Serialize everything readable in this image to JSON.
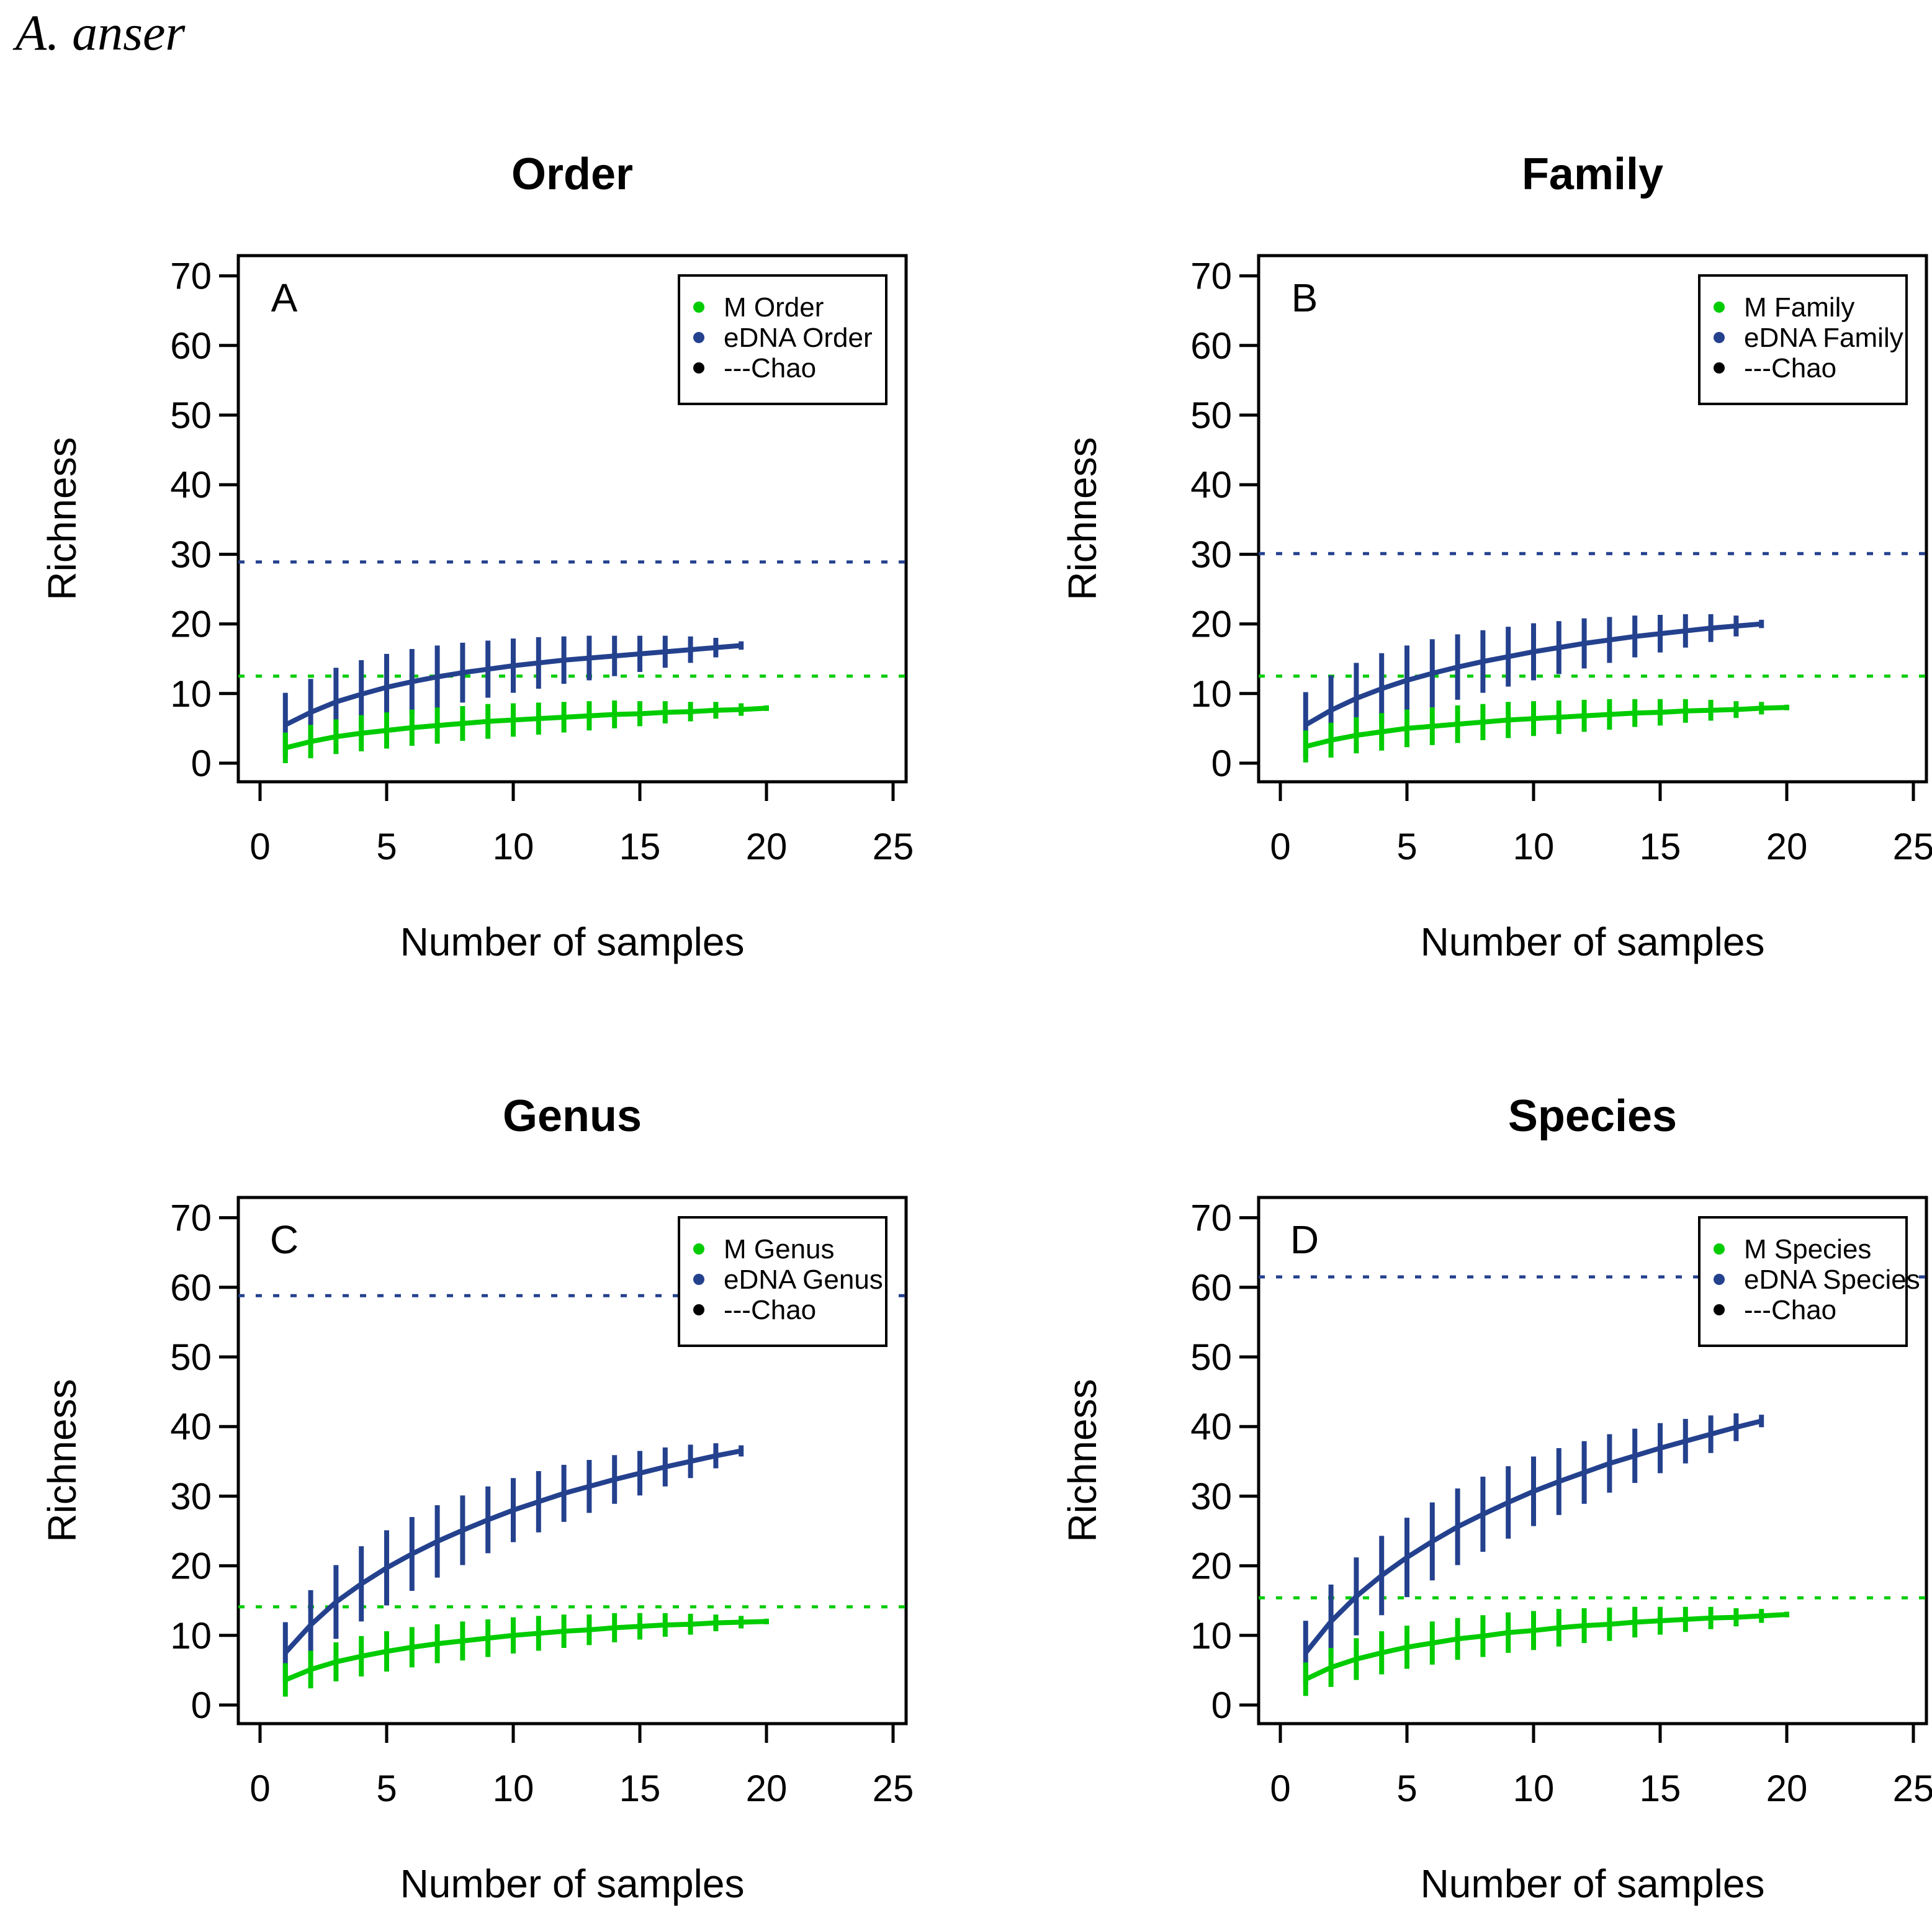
{
  "page": {
    "species_title": "A. anser",
    "background": "#ffffff"
  },
  "colors": {
    "m_green": "#00CC00",
    "edna_blue": "#24418E",
    "black": "#000000",
    "axis": "#000000"
  },
  "chart_data": [
    {
      "type": "line",
      "panel_letter": "A",
      "title": "Order",
      "xlabel": "Number of samples",
      "ylabel": "Richness",
      "xlim": [
        0,
        25
      ],
      "ylim": [
        0,
        70
      ],
      "xticks": [
        0,
        5,
        10,
        15,
        20,
        25
      ],
      "yticks": [
        0,
        10,
        20,
        30,
        40,
        50,
        60,
        70
      ],
      "legend_position": "top-right",
      "legend": [
        {
          "label": "M Order",
          "color": "m_green"
        },
        {
          "label": "eDNA Order",
          "color": "edna_blue"
        },
        {
          "label": "---Chao",
          "color": "black"
        }
      ],
      "chao_dashed_lines": [
        {
          "series": "eDNA Order",
          "value": 28.9,
          "color": "edna_blue"
        },
        {
          "series": "M Order",
          "value": 12.5,
          "color": "m_green"
        }
      ],
      "series": [
        {
          "name": "eDNA Order",
          "color": "edna_blue",
          "x": [
            1,
            2,
            3,
            4,
            5,
            6,
            7,
            8,
            9,
            10,
            11,
            12,
            13,
            14,
            15,
            16,
            17,
            18,
            19
          ],
          "y": [
            5.5,
            7.3,
            8.8,
            9.9,
            10.9,
            11.7,
            12.4,
            13.0,
            13.5,
            14.0,
            14.4,
            14.8,
            15.1,
            15.4,
            15.7,
            16.0,
            16.3,
            16.6,
            16.9
          ],
          "err": [
            4.6,
            4.8,
            4.9,
            4.9,
            4.8,
            4.7,
            4.5,
            4.3,
            4.1,
            3.9,
            3.7,
            3.4,
            3.2,
            2.9,
            2.6,
            2.3,
            1.9,
            1.4,
            0.6
          ]
        },
        {
          "name": "M Order",
          "color": "m_green",
          "x": [
            1,
            2,
            3,
            4,
            5,
            6,
            7,
            8,
            9,
            10,
            11,
            12,
            13,
            14,
            15,
            16,
            17,
            18,
            19,
            20
          ],
          "y": [
            2.2,
            3.1,
            3.8,
            4.3,
            4.7,
            5.1,
            5.4,
            5.7,
            6.0,
            6.2,
            6.4,
            6.6,
            6.8,
            7.0,
            7.1,
            7.3,
            7.4,
            7.6,
            7.7,
            7.9
          ],
          "err": [
            2.2,
            2.4,
            2.5,
            2.6,
            2.6,
            2.6,
            2.6,
            2.5,
            2.5,
            2.4,
            2.3,
            2.2,
            2.1,
            2.0,
            1.8,
            1.6,
            1.4,
            1.2,
            0.9,
            0.4
          ]
        }
      ]
    },
    {
      "type": "line",
      "panel_letter": "B",
      "title": "Family",
      "xlabel": "Number of samples",
      "ylabel": "Richness",
      "xlim": [
        0,
        25
      ],
      "ylim": [
        0,
        70
      ],
      "xticks": [
        0,
        5,
        10,
        15,
        20,
        25
      ],
      "yticks": [
        0,
        10,
        20,
        30,
        40,
        50,
        60,
        70
      ],
      "legend_position": "top-right",
      "legend": [
        {
          "label": "M Family",
          "color": "m_green"
        },
        {
          "label": "eDNA Family",
          "color": "edna_blue"
        },
        {
          "label": "---Chao",
          "color": "black"
        }
      ],
      "chao_dashed_lines": [
        {
          "series": "eDNA Family",
          "value": 30.1,
          "color": "edna_blue"
        },
        {
          "series": "M Family",
          "value": 12.5,
          "color": "m_green"
        }
      ],
      "series": [
        {
          "name": "eDNA Family",
          "color": "edna_blue",
          "x": [
            1,
            2,
            3,
            4,
            5,
            6,
            7,
            8,
            9,
            10,
            11,
            12,
            13,
            14,
            15,
            16,
            17,
            18,
            19
          ],
          "y": [
            5.5,
            7.6,
            9.3,
            10.7,
            11.9,
            12.9,
            13.8,
            14.6,
            15.3,
            16.0,
            16.6,
            17.2,
            17.7,
            18.2,
            18.6,
            19.0,
            19.4,
            19.7,
            20.0
          ],
          "err": [
            4.7,
            5.0,
            5.1,
            5.1,
            5.0,
            4.9,
            4.7,
            4.5,
            4.3,
            4.1,
            3.8,
            3.6,
            3.3,
            3.0,
            2.7,
            2.4,
            2.0,
            1.5,
            0.6
          ]
        },
        {
          "name": "M Family",
          "color": "m_green",
          "x": [
            1,
            2,
            3,
            4,
            5,
            6,
            7,
            8,
            9,
            10,
            11,
            12,
            13,
            14,
            15,
            16,
            17,
            18,
            19,
            20
          ],
          "y": [
            2.4,
            3.3,
            4.0,
            4.5,
            5.0,
            5.3,
            5.6,
            5.9,
            6.2,
            6.4,
            6.6,
            6.8,
            7.0,
            7.2,
            7.3,
            7.5,
            7.6,
            7.7,
            7.9,
            8.0
          ],
          "err": [
            2.3,
            2.5,
            2.6,
            2.7,
            2.7,
            2.7,
            2.7,
            2.6,
            2.6,
            2.5,
            2.4,
            2.3,
            2.2,
            2.0,
            1.9,
            1.7,
            1.5,
            1.2,
            0.9,
            0.4
          ]
        }
      ]
    },
    {
      "type": "line",
      "panel_letter": "C",
      "title": "Genus",
      "xlabel": "Number of samples",
      "ylabel": "Richness",
      "xlim": [
        0,
        25
      ],
      "ylim": [
        0,
        70
      ],
      "xticks": [
        0,
        5,
        10,
        15,
        20,
        25
      ],
      "yticks": [
        0,
        10,
        20,
        30,
        40,
        50,
        60,
        70
      ],
      "legend_position": "top-right",
      "legend": [
        {
          "label": "M Genus",
          "color": "m_green"
        },
        {
          "label": "eDNA Genus",
          "color": "edna_blue"
        },
        {
          "label": "---Chao",
          "color": "black"
        }
      ],
      "chao_dashed_lines": [
        {
          "series": "eDNA Genus",
          "value": 58.8,
          "color": "edna_blue"
        },
        {
          "series": "M Genus",
          "value": 14.1,
          "color": "m_green"
        }
      ],
      "series": [
        {
          "name": "eDNA Genus",
          "color": "edna_blue",
          "x": [
            1,
            2,
            3,
            4,
            5,
            6,
            7,
            8,
            9,
            10,
            11,
            12,
            13,
            14,
            15,
            16,
            17,
            18,
            19
          ],
          "y": [
            7.5,
            11.5,
            14.8,
            17.4,
            19.7,
            21.7,
            23.5,
            25.1,
            26.6,
            28.0,
            29.2,
            30.4,
            31.4,
            32.4,
            33.3,
            34.2,
            35.0,
            35.8,
            36.5
          ],
          "err": [
            4.4,
            5.0,
            5.3,
            5.4,
            5.4,
            5.3,
            5.2,
            5.0,
            4.8,
            4.6,
            4.4,
            4.1,
            3.8,
            3.5,
            3.2,
            2.8,
            2.4,
            1.8,
            0.8
          ]
        },
        {
          "name": "M Genus",
          "color": "m_green",
          "x": [
            1,
            2,
            3,
            4,
            5,
            6,
            7,
            8,
            9,
            10,
            11,
            12,
            13,
            14,
            15,
            16,
            17,
            18,
            19,
            20
          ],
          "y": [
            3.6,
            5.1,
            6.2,
            7.0,
            7.7,
            8.3,
            8.8,
            9.2,
            9.6,
            10.0,
            10.3,
            10.6,
            10.8,
            11.1,
            11.3,
            11.5,
            11.6,
            11.8,
            11.9,
            12.0
          ],
          "err": [
            2.4,
            2.7,
            2.8,
            2.9,
            2.9,
            2.9,
            2.8,
            2.8,
            2.7,
            2.6,
            2.5,
            2.4,
            2.2,
            2.1,
            1.9,
            1.7,
            1.5,
            1.2,
            0.9,
            0.4
          ]
        }
      ]
    },
    {
      "type": "line",
      "panel_letter": "D",
      "title": "Species",
      "xlabel": "Number of samples",
      "ylabel": "Richness",
      "xlim": [
        0,
        25
      ],
      "ylim": [
        0,
        70
      ],
      "xticks": [
        0,
        5,
        10,
        15,
        20,
        25
      ],
      "yticks": [
        0,
        10,
        20,
        30,
        40,
        50,
        60,
        70
      ],
      "legend_position": "top-right",
      "legend": [
        {
          "label": "M Species",
          "color": "m_green"
        },
        {
          "label": "eDNA Species",
          "color": "edna_blue"
        },
        {
          "label": "---Chao",
          "color": "black"
        }
      ],
      "chao_dashed_lines": [
        {
          "series": "eDNA Species",
          "value": 61.5,
          "color": "edna_blue"
        },
        {
          "series": "M Species",
          "value": 15.4,
          "color": "m_green"
        }
      ],
      "series": [
        {
          "name": "eDNA Species",
          "color": "edna_blue",
          "x": [
            1,
            2,
            3,
            4,
            5,
            6,
            7,
            8,
            9,
            10,
            11,
            12,
            13,
            14,
            15,
            16,
            17,
            18,
            19
          ],
          "y": [
            7.5,
            12.0,
            15.6,
            18.6,
            21.2,
            23.5,
            25.6,
            27.4,
            29.1,
            30.7,
            32.1,
            33.4,
            34.7,
            35.8,
            36.9,
            37.9,
            38.9,
            39.9,
            40.8
          ],
          "err": [
            4.6,
            5.3,
            5.6,
            5.7,
            5.7,
            5.6,
            5.5,
            5.4,
            5.2,
            5.0,
            4.8,
            4.5,
            4.2,
            3.9,
            3.6,
            3.2,
            2.7,
            2.0,
            0.9
          ]
        },
        {
          "name": "M Species",
          "color": "m_green",
          "x": [
            1,
            2,
            3,
            4,
            5,
            6,
            7,
            8,
            9,
            10,
            11,
            12,
            13,
            14,
            15,
            16,
            17,
            18,
            19,
            20
          ],
          "y": [
            3.7,
            5.4,
            6.6,
            7.5,
            8.3,
            8.9,
            9.5,
            9.9,
            10.4,
            10.7,
            11.1,
            11.4,
            11.6,
            11.9,
            12.1,
            12.3,
            12.5,
            12.6,
            12.8,
            13.0
          ],
          "err": [
            2.4,
            2.8,
            3.0,
            3.1,
            3.1,
            3.1,
            3.0,
            3.0,
            2.9,
            2.8,
            2.7,
            2.5,
            2.4,
            2.2,
            2.0,
            1.8,
            1.6,
            1.3,
            1.0,
            0.4
          ]
        }
      ]
    }
  ]
}
